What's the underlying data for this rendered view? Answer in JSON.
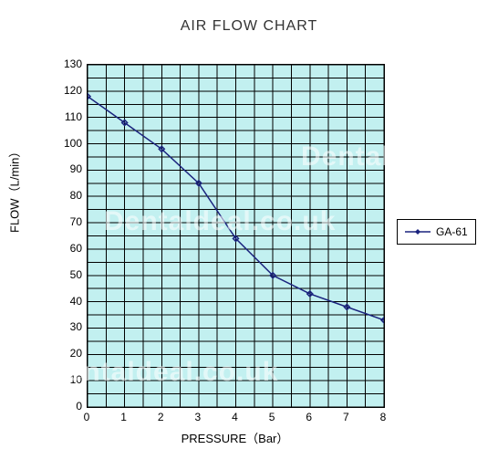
{
  "chart": {
    "type": "line",
    "title": "AIR FLOW CHART",
    "title_fontsize": 16,
    "title_color": "#333333",
    "background_color": "#ffffff",
    "plot_background_color": "#c2f0f0",
    "grid_color": "#000000",
    "border_color": "#000000",
    "font_family": "Verdana",
    "x_axis": {
      "label": "PRESSURE（Bar）",
      "label_fontsize": 13,
      "min": 0,
      "max": 8,
      "tick_step": 1,
      "minor_per_major": 2,
      "ticks": [
        0,
        1,
        2,
        3,
        4,
        5,
        6,
        7,
        8
      ],
      "tick_fontsize": 12
    },
    "y_axis": {
      "label": "FLOW（L/min）",
      "label_fontsize": 13,
      "min": 0,
      "max": 130,
      "tick_step": 10,
      "minor_per_major": 2,
      "ticks": [
        0,
        10,
        20,
        30,
        40,
        50,
        60,
        70,
        80,
        90,
        100,
        110,
        120,
        130
      ],
      "tick_fontsize": 12
    },
    "series": [
      {
        "name": "GA-61",
        "color": "#1a237e",
        "line_width": 1.5,
        "marker": "diamond",
        "marker_size": 6,
        "x": [
          0,
          1,
          2,
          3,
          4,
          5,
          6,
          7,
          8
        ],
        "y": [
          118,
          108,
          98,
          85,
          64,
          50,
          43,
          38,
          33
        ]
      }
    ],
    "legend": {
      "position": "right",
      "border_color": "#000000",
      "background_color": "#ffffff",
      "fontsize": 12
    },
    "watermark": {
      "text": "Dentaldeal.co.uk",
      "color_rgba": "rgba(255,255,255,0.55)",
      "fontsize": 30
    }
  }
}
